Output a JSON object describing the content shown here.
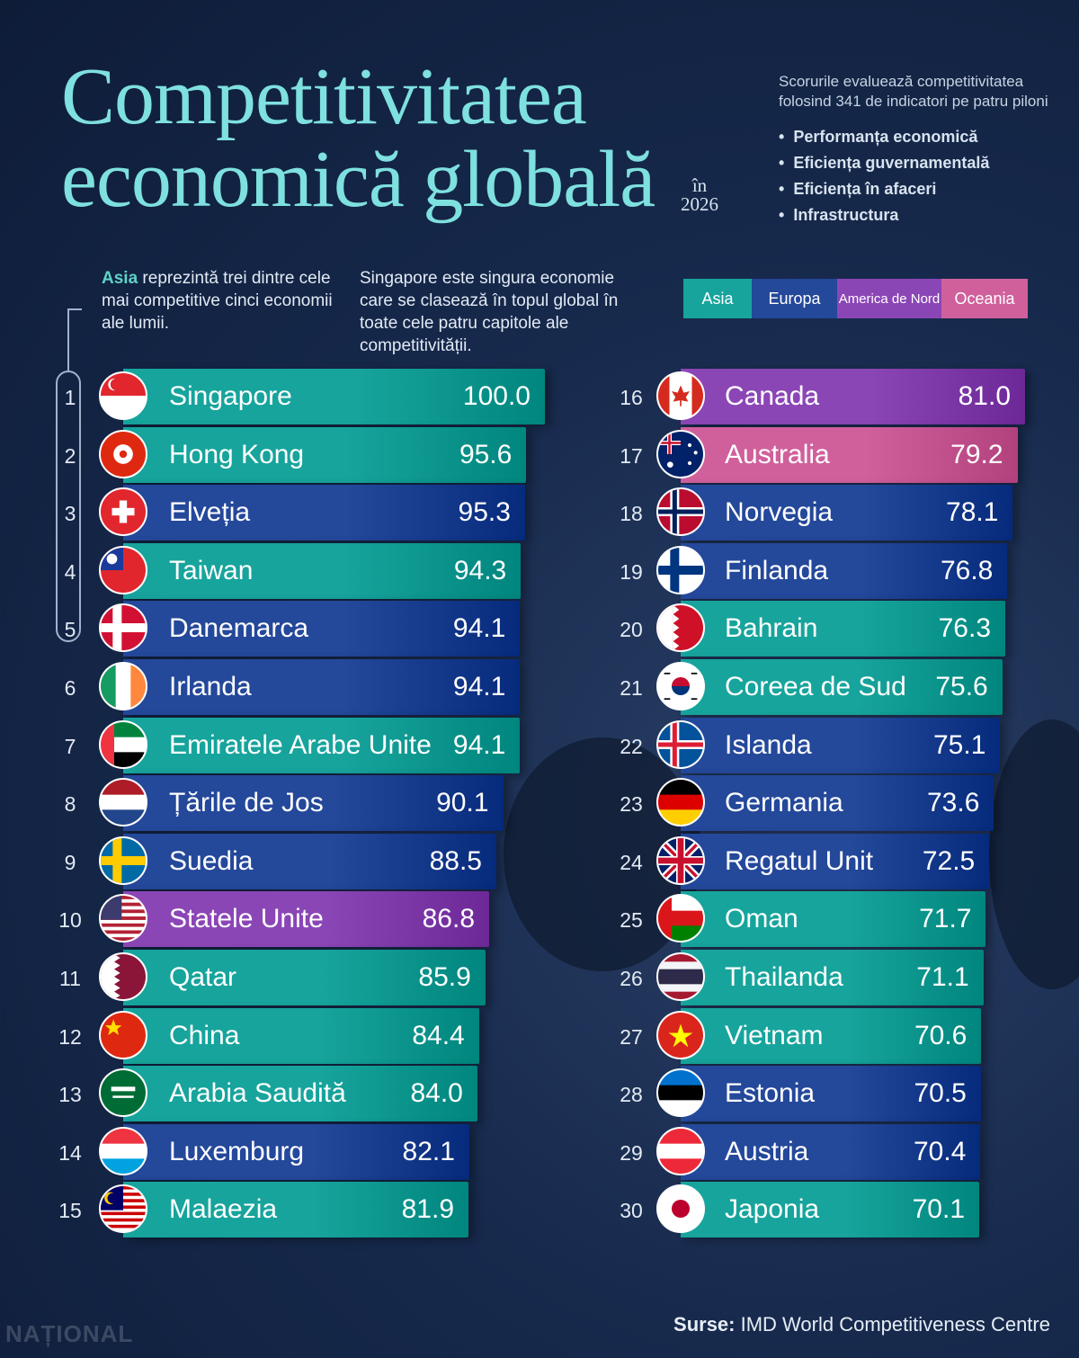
{
  "title": "Competitivitatea\neconomică globală",
  "year_label": "în\n2026",
  "methodology": {
    "intro": "Scorurile evaluează competitivitatea folosind 341 de indicatori pe patru piloni",
    "pillars": [
      "Performanța economică",
      "Eficiența guvernamentală",
      "Eficiența în afaceri",
      "Infrastructura"
    ]
  },
  "note_asia": {
    "highlight": "Asia",
    "text": " reprezintă trei dintre cele mai competitive cinci economii ale lumii."
  },
  "note_singapore": "Singapore este singura economie care se clasează în topul global în toate cele patru capitole ale competitivității.",
  "legend": [
    {
      "label": "Asia",
      "color": "#17a49c"
    },
    {
      "label": "Europa",
      "color": "#24489a"
    },
    {
      "label": "America de Nord",
      "color": "#8b46b6"
    },
    {
      "label": "Oceania",
      "color": "#d0609c"
    }
  ],
  "chart_data": {
    "type": "bar",
    "orientation": "horizontal",
    "value_axis_max": 100,
    "categories": [
      "Singapore",
      "Hong Kong",
      "Elveția",
      "Taiwan",
      "Danemarca",
      "Irlanda",
      "Emiratele Arabe Unite",
      "Țările de Jos",
      "Suedia",
      "Statele Unite",
      "Qatar",
      "China",
      "Arabia Saudită",
      "Luxemburg",
      "Malaezia",
      "Canada",
      "Australia",
      "Norvegia",
      "Finlanda",
      "Bahrain",
      "Coreea de Sud",
      "Islanda",
      "Germania",
      "Regatul Unit",
      "Oman",
      "Thailanda",
      "Vietnam",
      "Estonia",
      "Austria",
      "Japonia"
    ],
    "ranks": [
      1,
      2,
      3,
      4,
      5,
      6,
      7,
      8,
      9,
      10,
      11,
      12,
      13,
      14,
      15,
      16,
      17,
      18,
      19,
      20,
      21,
      22,
      23,
      24,
      25,
      26,
      27,
      28,
      29,
      30
    ],
    "values": [
      "100.0",
      "95.6",
      "95.3",
      "94.3",
      "94.1",
      "94.1",
      "94.1",
      "90.1",
      "88.5",
      "86.8",
      "85.9",
      "84.4",
      "84.0",
      "82.1",
      "81.9",
      "81.0",
      "79.2",
      "78.1",
      "76.8",
      "76.3",
      "75.6",
      "75.1",
      "73.6",
      "72.5",
      "71.7",
      "71.1",
      "70.6",
      "70.5",
      "70.4",
      "70.1"
    ],
    "regions": [
      "Asia",
      "Asia",
      "Europa",
      "Asia",
      "Europa",
      "Europa",
      "Asia",
      "Europa",
      "Europa",
      "America de Nord",
      "Asia",
      "Asia",
      "Asia",
      "Europa",
      "Asia",
      "America de Nord",
      "Oceania",
      "Europa",
      "Europa",
      "Asia",
      "Asia",
      "Europa",
      "Europa",
      "Europa",
      "Asia",
      "Asia",
      "Asia",
      "Europa",
      "Europa",
      "Asia"
    ],
    "flag_icons": [
      "singapore-flag-icon",
      "hong-kong-flag-icon",
      "switzerland-flag-icon",
      "taiwan-flag-icon",
      "denmark-flag-icon",
      "ireland-flag-icon",
      "uae-flag-icon",
      "netherlands-flag-icon",
      "sweden-flag-icon",
      "usa-flag-icon",
      "qatar-flag-icon",
      "china-flag-icon",
      "saudi-arabia-flag-icon",
      "luxembourg-flag-icon",
      "malaysia-flag-icon",
      "canada-flag-icon",
      "australia-flag-icon",
      "norway-flag-icon",
      "finland-flag-icon",
      "bahrain-flag-icon",
      "south-korea-flag-icon",
      "iceland-flag-icon",
      "germany-flag-icon",
      "uk-flag-icon",
      "oman-flag-icon",
      "thailand-flag-icon",
      "vietnam-flag-icon",
      "estonia-flag-icon",
      "austria-flag-icon",
      "japan-flag-icon"
    ]
  },
  "source": {
    "label": "Surse:",
    "text": " IMD World Competitiveness Centre"
  },
  "logo_text": "NAȚIONAL"
}
